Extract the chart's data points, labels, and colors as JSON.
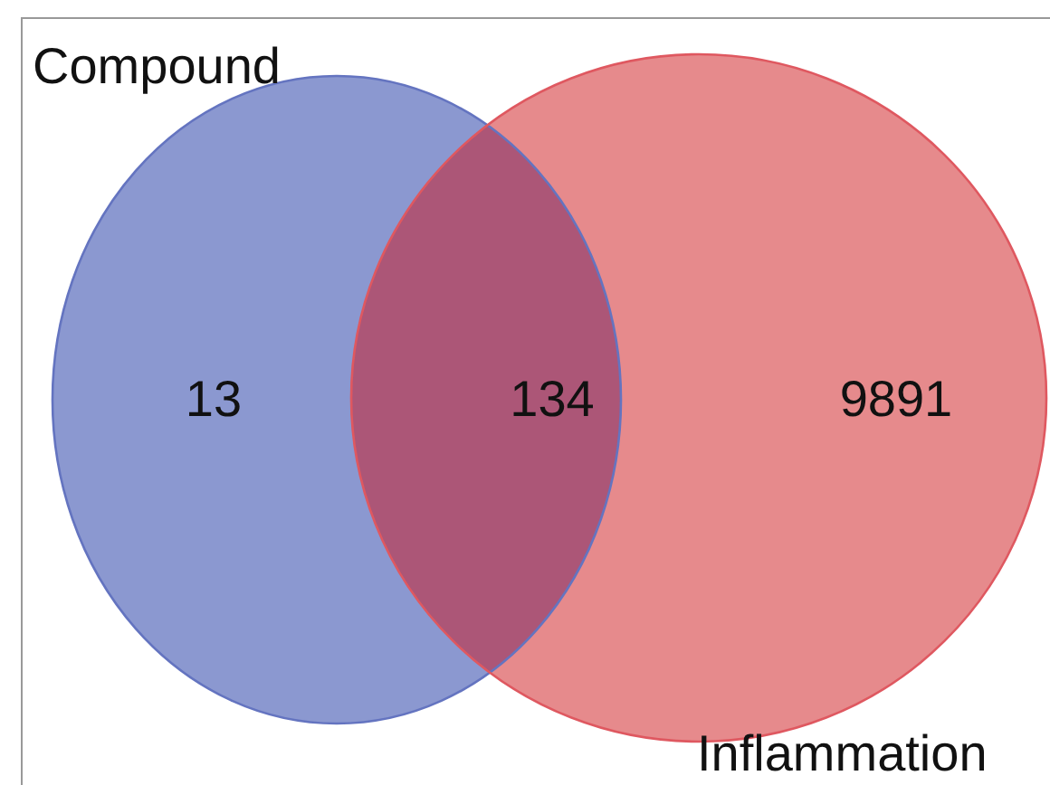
{
  "chart_data": {
    "type": "other",
    "categories": [
      null,
      null,
      null
    ],
    "values": [
      13,
      134,
      9891
    ],
    "colors": [
      "#8b98d0",
      "#ac5677",
      "#e68a8c"
    ],
    "data_labels": true,
    "annotations": [
      "Compound",
      "Inflammation"
    ]
  }
}
